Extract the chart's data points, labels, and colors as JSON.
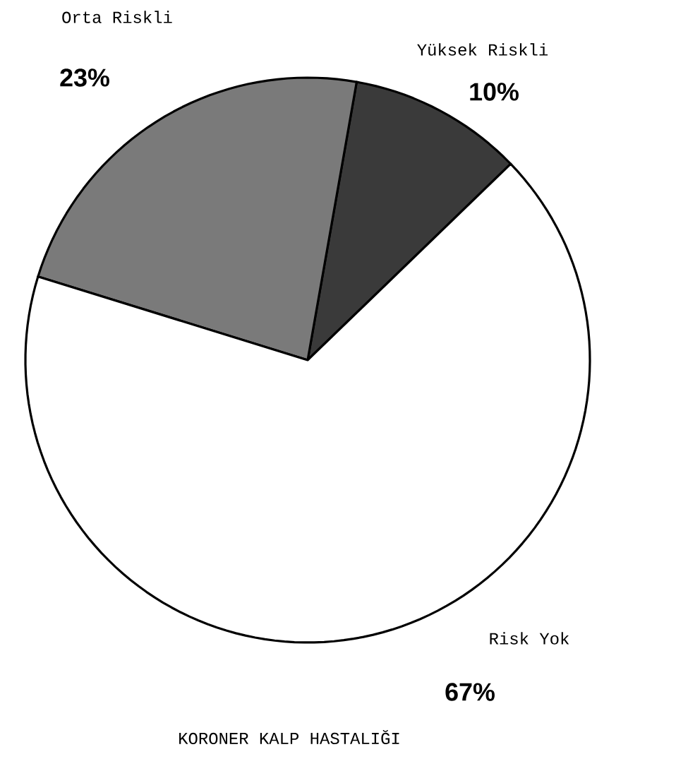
{
  "chart_data": {
    "type": "pie",
    "title": "KORONER KALP HASTALIĞI",
    "categories": [
      "Yüksek Riskli",
      "Orta Riskli",
      "Risk Yok"
    ],
    "values": [
      10,
      23,
      67
    ],
    "colors": [
      "#3a3a3a",
      "#7a7a7a",
      "#ffffff"
    ],
    "value_labels": [
      "10%",
      "23%",
      "67%"
    ]
  }
}
